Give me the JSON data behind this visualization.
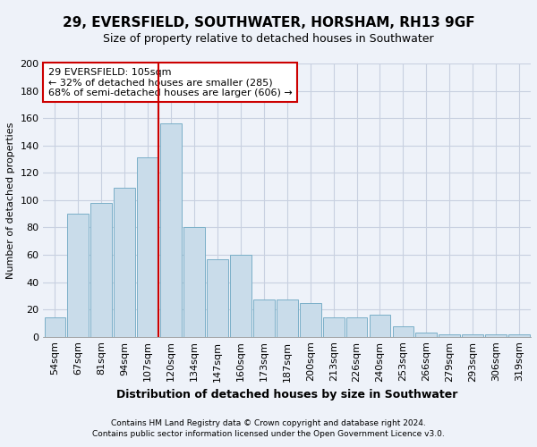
{
  "title1": "29, EVERSFIELD, SOUTHWATER, HORSHAM, RH13 9GF",
  "title2": "Size of property relative to detached houses in Southwater",
  "xlabel": "Distribution of detached houses by size in Southwater",
  "ylabel": "Number of detached properties",
  "bar_labels": [
    "54sqm",
    "67sqm",
    "81sqm",
    "94sqm",
    "107sqm",
    "120sqm",
    "134sqm",
    "147sqm",
    "160sqm",
    "173sqm",
    "187sqm",
    "200sqm",
    "213sqm",
    "226sqm",
    "240sqm",
    "253sqm",
    "266sqm",
    "279sqm",
    "293sqm",
    "306sqm",
    "319sqm"
  ],
  "bar_values": [
    14,
    90,
    98,
    109,
    131,
    156,
    80,
    57,
    60,
    27,
    27,
    25,
    14,
    14,
    16,
    8,
    3,
    2,
    2,
    2,
    2
  ],
  "bar_color": "#c9dcea",
  "bar_edge_color": "#7aafc8",
  "vline_color": "#cc0000",
  "vline_bin_index": 4,
  "annotation_line1": "29 EVERSFIELD: 105sqm",
  "annotation_line2": "← 32% of detached houses are smaller (285)",
  "annotation_line3": "68% of semi-detached houses are larger (606) →",
  "annotation_box_color": "white",
  "annotation_box_edge": "#cc0000",
  "ylim": [
    0,
    200
  ],
  "yticks": [
    0,
    20,
    40,
    60,
    80,
    100,
    120,
    140,
    160,
    180,
    200
  ],
  "footer1": "Contains HM Land Registry data © Crown copyright and database right 2024.",
  "footer2": "Contains public sector information licensed under the Open Government Licence v3.0.",
  "bg_color": "#eef2f9",
  "grid_color": "#c8d0e0",
  "title1_fontsize": 11,
  "title2_fontsize": 9,
  "xlabel_fontsize": 9,
  "ylabel_fontsize": 8,
  "tick_fontsize": 8,
  "footer_fontsize": 6.5,
  "annot_fontsize": 8
}
